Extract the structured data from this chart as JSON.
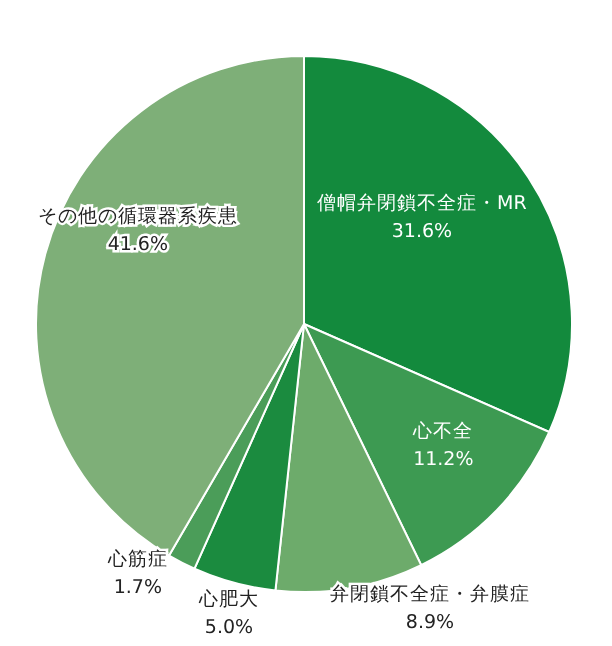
{
  "chart_data": {
    "type": "pie",
    "categories": [
      "僧帽弁閉鎖不全症・MR",
      "心不全",
      "弁閉鎖不全症・弁膜症",
      "心肥大",
      "心筋症",
      "その他の循環器系疾患"
    ],
    "values": [
      31.6,
      11.2,
      8.9,
      5.0,
      1.7,
      41.6
    ],
    "value_labels": [
      "31.6%",
      "11.2%",
      "8.9%",
      "5.0%",
      "1.7%",
      "41.6%"
    ],
    "colors": [
      "#138a3d",
      "#3d9a52",
      "#6dab6b",
      "#1b8b3f",
      "#4b9d59",
      "#7eaf78"
    ]
  }
}
